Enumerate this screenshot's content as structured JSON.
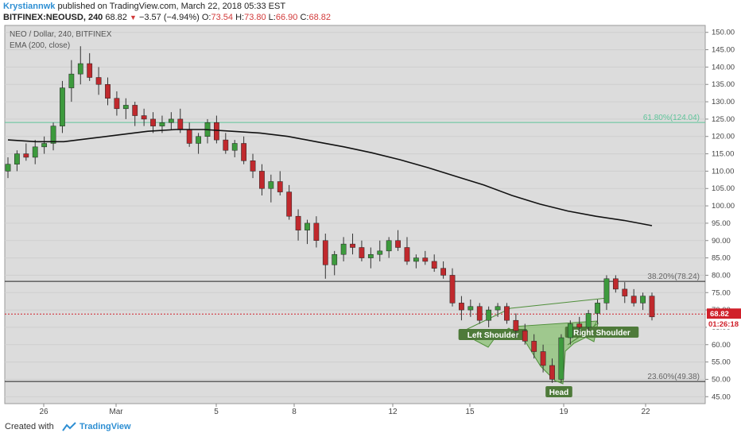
{
  "header": {
    "author": "Krystiannwk",
    "published": "published on TradingView.com, March 22, 2018 05:33 EST",
    "symbol": "BITFINEX:NEOUSD, 240",
    "last": "68.82",
    "change": "−3.57 (−4.94%)",
    "o_label": "O:",
    "o": "73.54",
    "h_label": "H:",
    "h": "73.80",
    "l_label": "L:",
    "l": "66.90",
    "c_label": "C:",
    "c": "68.82"
  },
  "legend": {
    "title": "NEO / Dollar, 240, BITFINEX",
    "indicator": "EMA (200, close)"
  },
  "footer": {
    "created_with": "Created with",
    "brand": "TradingView"
  },
  "colors": {
    "up": "#3d9a3d",
    "down": "#c0292d",
    "ema": "#111111",
    "fib_618": "#5fc49a",
    "pattern_fill": "#6db84f",
    "label_bg": "#4e7a3a",
    "price_tag": "#d0202a"
  },
  "chart_data": {
    "type": "candlestick",
    "ylim": [
      43,
      152
    ],
    "y_ticks": [
      "150.00",
      "145.00",
      "140.00",
      "135.00",
      "130.00",
      "125.00",
      "120.00",
      "115.00",
      "110.00",
      "105.00",
      "100.00",
      "95.00",
      "90.00",
      "85.00",
      "80.00",
      "75.00",
      "70.00",
      "65.00",
      "60.00",
      "55.00",
      "50.00",
      "45.00"
    ],
    "x_labels": [
      "26",
      "Mar",
      "5",
      "8",
      "12",
      "15",
      "19",
      "22"
    ],
    "last_price": "68.82",
    "countdown": "01:26:18",
    "fib_levels": [
      {
        "label": "61.80%(124.04)",
        "value": 124.04
      },
      {
        "label": "38.20%(78.24)",
        "value": 78.24
      },
      {
        "label": "23.60%(49.38)",
        "value": 49.38
      }
    ],
    "pattern_labels": [
      "Left Shoulder",
      "Head",
      "Right Shoulder"
    ],
    "ema_label": "EMA (200, close)",
    "ema": [
      119,
      118.5,
      118.5,
      119.5,
      120.5,
      121.5,
      122,
      122,
      121.5,
      121,
      120,
      118.5,
      117,
      115.3,
      113.3,
      111,
      108.5,
      106,
      103,
      100.5,
      98.5,
      97,
      95.8,
      94.3
    ],
    "ohlc": [
      [
        110,
        114,
        108,
        112
      ],
      [
        112,
        116,
        110,
        115
      ],
      [
        115,
        118,
        113,
        114
      ],
      [
        114,
        119,
        112,
        117
      ],
      [
        117,
        120,
        115,
        118
      ],
      [
        118,
        124,
        116,
        123
      ],
      [
        123,
        136,
        121,
        134
      ],
      [
        134,
        142,
        130,
        138
      ],
      [
        138,
        146,
        135,
        141
      ],
      [
        141,
        144,
        136,
        137
      ],
      [
        137,
        140,
        132,
        135
      ],
      [
        135,
        137,
        129,
        131
      ],
      [
        131,
        133,
        126,
        128
      ],
      [
        128,
        131,
        125,
        129
      ],
      [
        129,
        130,
        123,
        126
      ],
      [
        126,
        128,
        123,
        125
      ],
      [
        125,
        127,
        121,
        123
      ],
      [
        123,
        126,
        121,
        124
      ],
      [
        124,
        127,
        122,
        125
      ],
      [
        125,
        128,
        121,
        122
      ],
      [
        122,
        124,
        117,
        118
      ],
      [
        118,
        121,
        115,
        120
      ],
      [
        120,
        125,
        118,
        124
      ],
      [
        124,
        126,
        118,
        119
      ],
      [
        119,
        121,
        115,
        116
      ],
      [
        116,
        119,
        114,
        118
      ],
      [
        118,
        120,
        112,
        113
      ],
      [
        113,
        115,
        108,
        110
      ],
      [
        110,
        112,
        103,
        105
      ],
      [
        105,
        109,
        101,
        107
      ],
      [
        107,
        110,
        103,
        104
      ],
      [
        104,
        106,
        96,
        97
      ],
      [
        97,
        99,
        90,
        93
      ],
      [
        93,
        96,
        89,
        95
      ],
      [
        95,
        97,
        88,
        90
      ],
      [
        90,
        92,
        79,
        83
      ],
      [
        83,
        87,
        80,
        86
      ],
      [
        86,
        91,
        84,
        89
      ],
      [
        89,
        92,
        86,
        88
      ],
      [
        88,
        90,
        84,
        85
      ],
      [
        85,
        88,
        82,
        86
      ],
      [
        86,
        90,
        84,
        87
      ],
      [
        87,
        91,
        85,
        90
      ],
      [
        90,
        93,
        87,
        88
      ],
      [
        88,
        91,
        83,
        84
      ],
      [
        84,
        86,
        82,
        85
      ],
      [
        85,
        87,
        83,
        84
      ],
      [
        84,
        86,
        81,
        82
      ],
      [
        82,
        84,
        79,
        80
      ],
      [
        80,
        82,
        71,
        72
      ],
      [
        72,
        74,
        67,
        70
      ],
      [
        70,
        73,
        68,
        71
      ],
      [
        71,
        72,
        66,
        67
      ],
      [
        67,
        71,
        65,
        70
      ],
      [
        70,
        72,
        68,
        71
      ],
      [
        71,
        72,
        66,
        67
      ],
      [
        67,
        69,
        62,
        64
      ],
      [
        64,
        66,
        60,
        61
      ],
      [
        61,
        63,
        56,
        58
      ],
      [
        58,
        60,
        52,
        54
      ],
      [
        54,
        56,
        49,
        50
      ],
      [
        50,
        63,
        49,
        62
      ],
      [
        62,
        67,
        60,
        66
      ],
      [
        66,
        68,
        63,
        65
      ],
      [
        65,
        70,
        64,
        69
      ],
      [
        69,
        73,
        66,
        72
      ],
      [
        72,
        80,
        70,
        79
      ],
      [
        79,
        80,
        75,
        76
      ],
      [
        76,
        78,
        72,
        74
      ],
      [
        74,
        76,
        71,
        72
      ],
      [
        72,
        75,
        70,
        74
      ],
      [
        74,
        75,
        67,
        68
      ]
    ]
  }
}
